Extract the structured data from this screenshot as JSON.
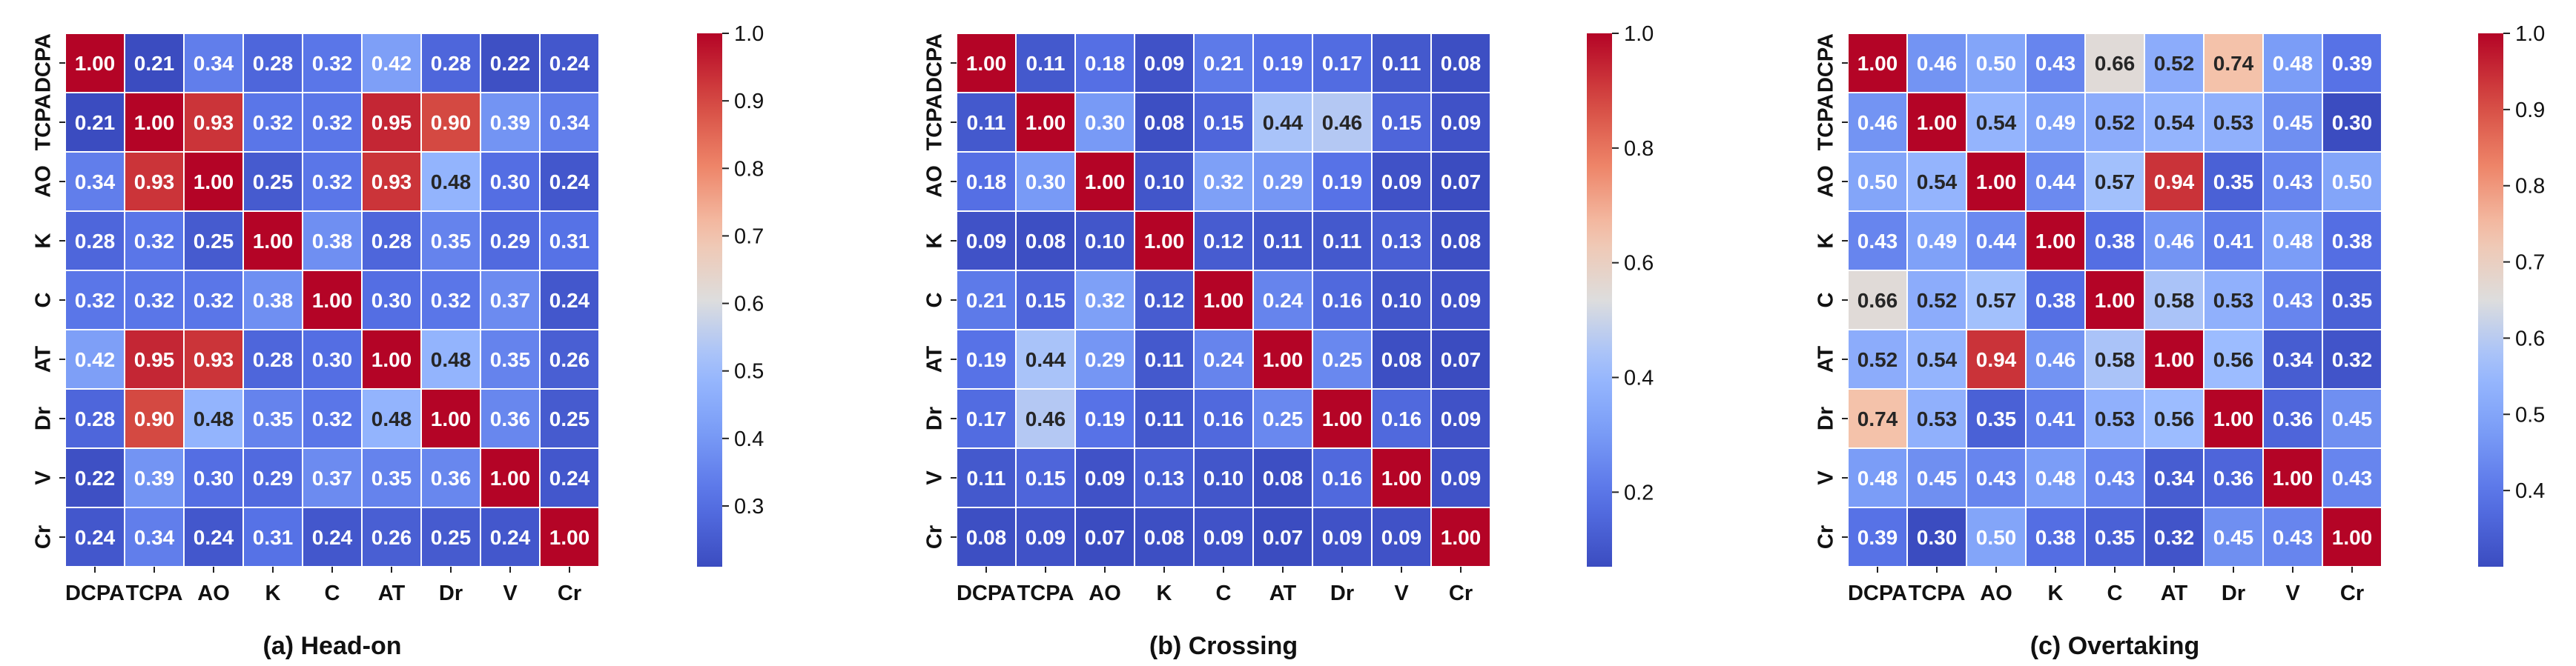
{
  "chart_data": [
    {
      "type": "heatmap",
      "caption": "(a) Head-on",
      "labels": [
        "DCPA",
        "TCPA",
        "AO",
        "K",
        "C",
        "AT",
        "Dr",
        "V",
        "Cr"
      ],
      "colorbar": {
        "min": 0.21,
        "max": 1.0,
        "ticks": [
          "0.3",
          "0.4",
          "0.5",
          "0.6",
          "0.7",
          "0.8",
          "0.9",
          "1.0"
        ]
      },
      "values": [
        [
          1.0,
          0.21,
          0.34,
          0.28,
          0.32,
          0.42,
          0.28,
          0.22,
          0.24
        ],
        [
          0.21,
          1.0,
          0.93,
          0.32,
          0.32,
          0.95,
          0.9,
          0.39,
          0.34
        ],
        [
          0.34,
          0.93,
          1.0,
          0.25,
          0.32,
          0.93,
          0.48,
          0.3,
          0.24
        ],
        [
          0.28,
          0.32,
          0.25,
          1.0,
          0.38,
          0.28,
          0.35,
          0.29,
          0.31
        ],
        [
          0.32,
          0.32,
          0.32,
          0.38,
          1.0,
          0.3,
          0.32,
          0.37,
          0.24
        ],
        [
          0.42,
          0.95,
          0.93,
          0.28,
          0.3,
          1.0,
          0.48,
          0.35,
          0.26
        ],
        [
          0.28,
          0.9,
          0.48,
          0.35,
          0.32,
          0.48,
          1.0,
          0.36,
          0.25
        ],
        [
          0.22,
          0.39,
          0.3,
          0.29,
          0.37,
          0.35,
          0.36,
          1.0,
          0.24
        ],
        [
          0.24,
          0.34,
          0.24,
          0.31,
          0.24,
          0.26,
          0.25,
          0.24,
          1.0
        ]
      ]
    },
    {
      "type": "heatmap",
      "caption": "(b) Crossing",
      "labels": [
        "DCPA",
        "TCPA",
        "AO",
        "K",
        "C",
        "AT",
        "Dr",
        "V",
        "Cr"
      ],
      "colorbar": {
        "min": 0.07,
        "max": 1.0,
        "ticks": [
          "0.2",
          "0.4",
          "0.6",
          "0.8",
          "1.0"
        ]
      },
      "values": [
        [
          1.0,
          0.11,
          0.18,
          0.09,
          0.21,
          0.19,
          0.17,
          0.11,
          0.08
        ],
        [
          0.11,
          1.0,
          0.3,
          0.08,
          0.15,
          0.44,
          0.46,
          0.15,
          0.09
        ],
        [
          0.18,
          0.3,
          1.0,
          0.1,
          0.32,
          0.29,
          0.19,
          0.09,
          0.07
        ],
        [
          0.09,
          0.08,
          0.1,
          1.0,
          0.12,
          0.11,
          0.11,
          0.13,
          0.08
        ],
        [
          0.21,
          0.15,
          0.32,
          0.12,
          1.0,
          0.24,
          0.16,
          0.1,
          0.09
        ],
        [
          0.19,
          0.44,
          0.29,
          0.11,
          0.24,
          1.0,
          0.25,
          0.08,
          0.07
        ],
        [
          0.17,
          0.46,
          0.19,
          0.11,
          0.16,
          0.25,
          1.0,
          0.16,
          0.09
        ],
        [
          0.11,
          0.15,
          0.09,
          0.13,
          0.1,
          0.08,
          0.16,
          1.0,
          0.09
        ],
        [
          0.08,
          0.09,
          0.07,
          0.08,
          0.09,
          0.07,
          0.09,
          0.09,
          1.0
        ]
      ]
    },
    {
      "type": "heatmap",
      "caption": "(c) Overtaking",
      "labels": [
        "DCPA",
        "TCPA",
        "AO",
        "K",
        "C",
        "AT",
        "Dr",
        "V",
        "Cr"
      ],
      "colorbar": {
        "min": 0.3,
        "max": 1.0,
        "ticks": [
          "0.4",
          "0.5",
          "0.6",
          "0.7",
          "0.8",
          "0.9",
          "1.0"
        ]
      },
      "values": [
        [
          1.0,
          0.46,
          0.5,
          0.43,
          0.66,
          0.52,
          0.74,
          0.48,
          0.39
        ],
        [
          0.46,
          1.0,
          0.54,
          0.49,
          0.52,
          0.54,
          0.53,
          0.45,
          0.3
        ],
        [
          0.5,
          0.54,
          1.0,
          0.44,
          0.57,
          0.94,
          0.35,
          0.43,
          0.5
        ],
        [
          0.43,
          0.49,
          0.44,
          1.0,
          0.38,
          0.46,
          0.41,
          0.48,
          0.38
        ],
        [
          0.66,
          0.52,
          0.57,
          0.38,
          1.0,
          0.58,
          0.53,
          0.43,
          0.35
        ],
        [
          0.52,
          0.54,
          0.94,
          0.46,
          0.58,
          1.0,
          0.56,
          0.34,
          0.32
        ],
        [
          0.74,
          0.53,
          0.35,
          0.41,
          0.53,
          0.56,
          1.0,
          0.36,
          0.45
        ],
        [
          0.48,
          0.45,
          0.43,
          0.48,
          0.43,
          0.34,
          0.36,
          1.0,
          0.43
        ],
        [
          0.39,
          0.3,
          0.5,
          0.38,
          0.35,
          0.32,
          0.45,
          0.43,
          1.0
        ]
      ]
    }
  ]
}
